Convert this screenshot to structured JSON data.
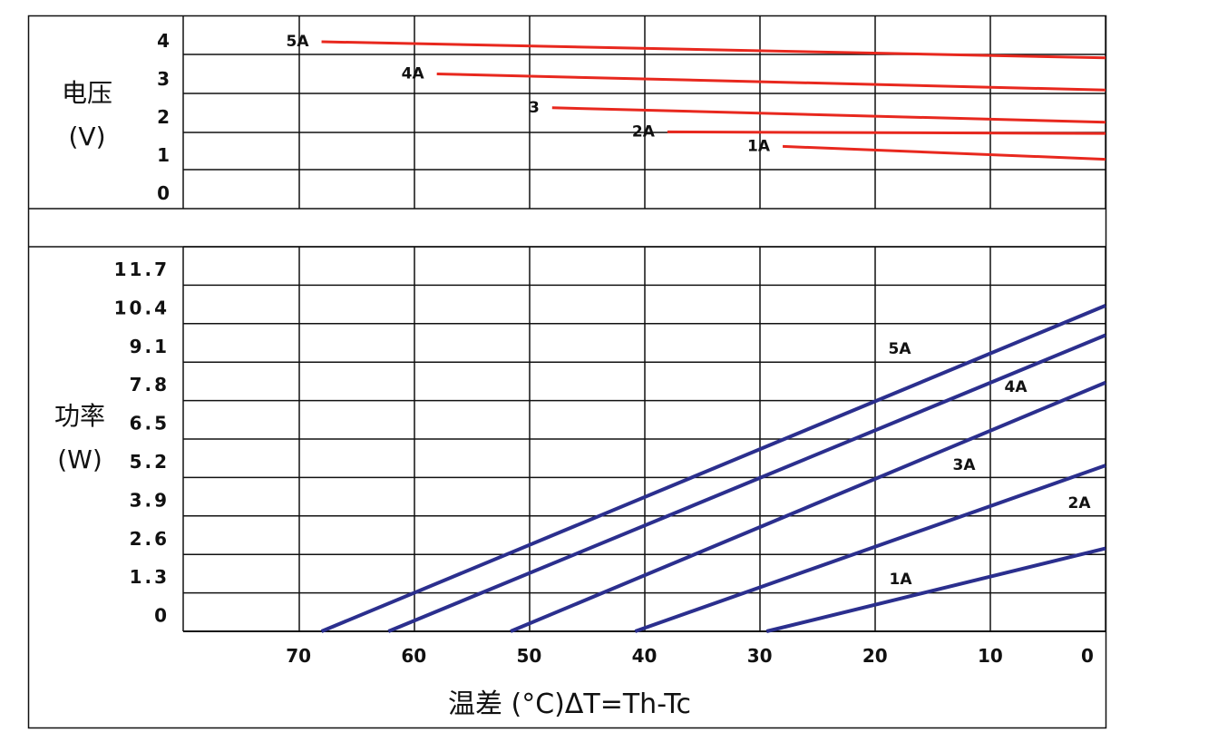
{
  "chart_data": [
    {
      "type": "line",
      "panel": "voltage",
      "ylabel_line1": "电压",
      "ylabel_line2": "(V)",
      "yticks": [
        "4",
        "3",
        "2",
        "1",
        "0"
      ],
      "ylim": [
        0,
        4
      ],
      "xlim": [
        80,
        0
      ],
      "colors": {
        "series": "#e8281e"
      },
      "series": [
        {
          "name": "5A",
          "x": [
            68,
            0
          ],
          "y": [
            4.0,
            3.5
          ]
        },
        {
          "name": "4A",
          "x": [
            58,
            0
          ],
          "y": [
            3.0,
            2.5
          ]
        },
        {
          "name": "3",
          "x": [
            48,
            0
          ],
          "y": [
            1.95,
            1.5
          ]
        },
        {
          "name": "2A",
          "x": [
            38,
            0
          ],
          "y": [
            1.2,
            1.15
          ]
        },
        {
          "name": "1A",
          "x": [
            28,
            0
          ],
          "y": [
            0.75,
            0.35
          ]
        }
      ]
    },
    {
      "type": "line",
      "panel": "power",
      "ylabel_line1": "功率",
      "ylabel_line2": "(W)",
      "yticks": [
        "11.7",
        "10.4",
        "9.1",
        "7.8",
        "6.5",
        "5.2",
        "3.9",
        "2.6",
        "1.3",
        "0"
      ],
      "ylim": [
        0,
        11.7
      ],
      "xlim": [
        80,
        0
      ],
      "xticks": [
        "70",
        "60",
        "50",
        "40",
        "30",
        "20",
        "10",
        "0"
      ],
      "xlabel": "温差 (°C)ΔT=Th-Tc",
      "colors": {
        "series": "#2b2f8e"
      },
      "series": [
        {
          "name": "5A",
          "x": [
            68,
            0
          ],
          "y": [
            0,
            11.0
          ]
        },
        {
          "name": "4A",
          "x": [
            62.2,
            0
          ],
          "y": [
            0,
            10.0
          ]
        },
        {
          "name": "3A",
          "x": [
            51.6,
            0
          ],
          "y": [
            0,
            8.4
          ]
        },
        {
          "name": "2A",
          "x": [
            40.8,
            0
          ],
          "y": [
            0,
            5.6
          ]
        },
        {
          "name": "1A",
          "x": [
            29.4,
            0
          ],
          "y": [
            0,
            2.8
          ]
        }
      ]
    }
  ]
}
